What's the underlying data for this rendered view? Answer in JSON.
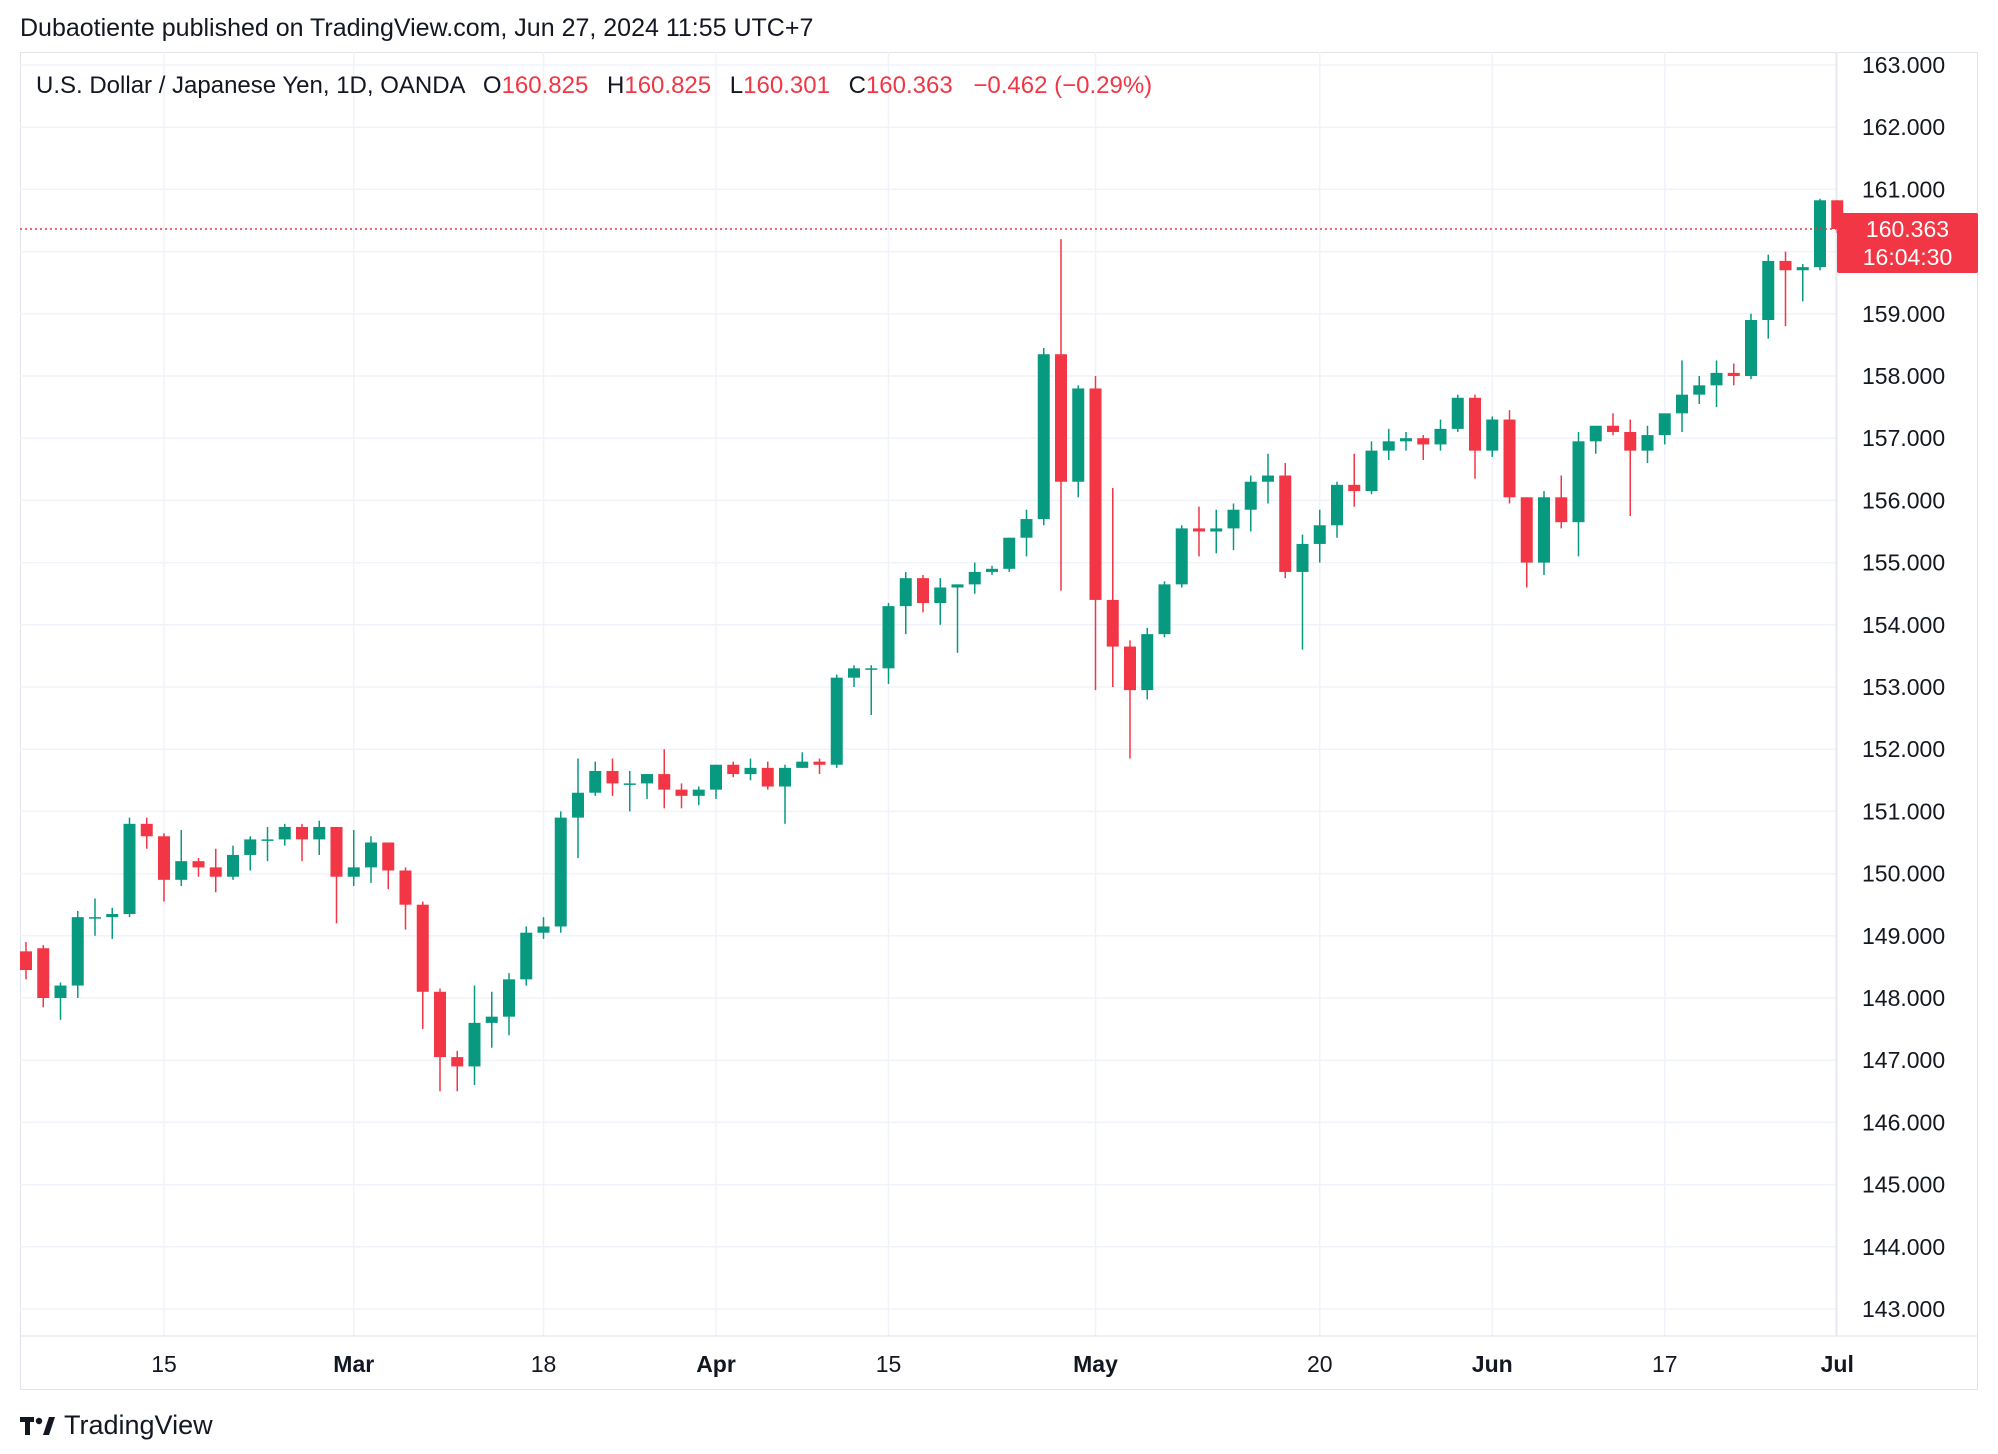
{
  "header": {
    "publisher_line": "Dubaotiente published on TradingView.com, Jun 27, 2024 11:55 UTC+7"
  },
  "legend": {
    "symbol": "U.S. Dollar / Japanese Yen, 1D, OANDA",
    "open_label": "O",
    "open_value": "160.825",
    "high_label": "H",
    "high_value": "160.825",
    "low_label": "L",
    "low_value": "160.301",
    "close_label": "C",
    "close_value": "160.363",
    "change": "−0.462 (−0.29%)"
  },
  "price_tag": {
    "price": "160.363",
    "countdown": "16:04:30"
  },
  "brand": {
    "name": "TradingView",
    "logo_icon": "tradingview-logo-icon"
  },
  "colors": {
    "up": "#089981",
    "down": "#f23645",
    "grid": "#f0f3fa",
    "last_price_line": "#f23645"
  },
  "chart_data": {
    "type": "candlestick",
    "title": "",
    "xlabel": "",
    "ylabel": "",
    "ylim": [
      142.6,
      163.4
    ],
    "y_ticks": [
      "163.000",
      "162.000",
      "161.000",
      "160.000",
      "159.000",
      "158.000",
      "157.000",
      "156.000",
      "155.000",
      "154.000",
      "153.000",
      "152.000",
      "151.000",
      "150.000",
      "149.000",
      "148.000",
      "147.000",
      "146.000",
      "145.000",
      "144.000",
      "143.000"
    ],
    "x_ticks": [
      {
        "label": "15",
        "index": 8,
        "bold": false
      },
      {
        "label": "Mar",
        "index": 19,
        "bold": true
      },
      {
        "label": "18",
        "index": 30,
        "bold": false
      },
      {
        "label": "Apr",
        "index": 40,
        "bold": true
      },
      {
        "label": "15",
        "index": 50,
        "bold": false
      },
      {
        "label": "May",
        "index": 62,
        "bold": true
      },
      {
        "label": "20",
        "index": 75,
        "bold": false
      },
      {
        "label": "Jun",
        "index": 85,
        "bold": true
      },
      {
        "label": "17",
        "index": 95,
        "bold": false
      },
      {
        "label": "Jul",
        "index": 105,
        "bold": true
      }
    ],
    "last_price": 160.363,
    "grid": true,
    "candles": [
      [
        148.75,
        148.9,
        148.3,
        148.45
      ],
      [
        148.8,
        148.85,
        147.85,
        148.0
      ],
      [
        148.0,
        148.25,
        147.65,
        148.2
      ],
      [
        148.2,
        149.4,
        148.0,
        149.3
      ],
      [
        149.3,
        149.6,
        149.0,
        149.3
      ],
      [
        149.3,
        149.45,
        148.95,
        149.35
      ],
      [
        149.35,
        150.9,
        149.3,
        150.8
      ],
      [
        150.8,
        150.9,
        150.4,
        150.6
      ],
      [
        150.6,
        150.65,
        149.55,
        149.9
      ],
      [
        149.9,
        150.7,
        149.8,
        150.2
      ],
      [
        150.2,
        150.25,
        149.95,
        150.1
      ],
      [
        150.1,
        150.4,
        149.7,
        149.95
      ],
      [
        149.95,
        150.45,
        149.9,
        150.3
      ],
      [
        150.3,
        150.6,
        150.05,
        150.55
      ],
      [
        150.55,
        150.75,
        150.2,
        150.55
      ],
      [
        150.55,
        150.8,
        150.45,
        150.75
      ],
      [
        150.75,
        150.8,
        150.2,
        150.55
      ],
      [
        150.55,
        150.85,
        150.3,
        150.75
      ],
      [
        150.75,
        150.75,
        149.2,
        149.95
      ],
      [
        149.95,
        150.7,
        149.8,
        150.1
      ],
      [
        150.1,
        150.6,
        149.85,
        150.5
      ],
      [
        150.5,
        150.5,
        149.75,
        150.05
      ],
      [
        150.05,
        150.1,
        149.1,
        149.5
      ],
      [
        149.5,
        149.55,
        147.5,
        148.1
      ],
      [
        148.1,
        148.15,
        146.5,
        147.05
      ],
      [
        147.05,
        147.15,
        146.5,
        146.9
      ],
      [
        146.9,
        148.2,
        146.6,
        147.6
      ],
      [
        147.6,
        148.1,
        147.2,
        147.7
      ],
      [
        147.7,
        148.4,
        147.4,
        148.3
      ],
      [
        148.3,
        149.15,
        148.2,
        149.05
      ],
      [
        149.05,
        149.3,
        148.95,
        149.15
      ],
      [
        149.15,
        151.0,
        149.05,
        150.9
      ],
      [
        150.9,
        151.85,
        150.25,
        151.3
      ],
      [
        151.3,
        151.8,
        151.25,
        151.65
      ],
      [
        151.65,
        151.85,
        151.25,
        151.45
      ],
      [
        151.45,
        151.65,
        151.0,
        151.45
      ],
      [
        151.45,
        151.6,
        151.2,
        151.6
      ],
      [
        151.6,
        152.0,
        151.05,
        151.35
      ],
      [
        151.35,
        151.45,
        151.05,
        151.25
      ],
      [
        151.25,
        151.4,
        151.1,
        151.35
      ],
      [
        151.35,
        151.75,
        151.2,
        151.75
      ],
      [
        151.75,
        151.8,
        151.55,
        151.6
      ],
      [
        151.6,
        151.85,
        151.5,
        151.7
      ],
      [
        151.7,
        151.8,
        151.35,
        151.4
      ],
      [
        151.4,
        151.75,
        150.8,
        151.7
      ],
      [
        151.7,
        151.95,
        151.7,
        151.8
      ],
      [
        151.8,
        151.85,
        151.6,
        151.75
      ],
      [
        151.75,
        153.2,
        151.7,
        153.15
      ],
      [
        153.15,
        153.35,
        153.0,
        153.3
      ],
      [
        153.3,
        153.35,
        152.55,
        153.3
      ],
      [
        153.3,
        154.35,
        153.05,
        154.3
      ],
      [
        154.3,
        154.85,
        153.85,
        154.75
      ],
      [
        154.75,
        154.8,
        154.2,
        154.35
      ],
      [
        154.35,
        154.75,
        154.0,
        154.6
      ],
      [
        154.6,
        154.65,
        153.55,
        154.65
      ],
      [
        154.65,
        155.0,
        154.5,
        154.85
      ],
      [
        154.85,
        154.95,
        154.8,
        154.9
      ],
      [
        154.9,
        155.4,
        154.85,
        155.4
      ],
      [
        155.4,
        155.85,
        155.1,
        155.7
      ],
      [
        155.7,
        158.45,
        155.6,
        158.35
      ],
      [
        158.35,
        160.2,
        154.55,
        156.3
      ],
      [
        156.3,
        157.85,
        156.05,
        157.8
      ],
      [
        157.8,
        158.0,
        152.95,
        154.4
      ],
      [
        154.4,
        156.2,
        153.0,
        153.65
      ],
      [
        153.65,
        153.75,
        151.85,
        152.95
      ],
      [
        152.95,
        153.95,
        152.8,
        153.85
      ],
      [
        153.85,
        154.7,
        153.8,
        154.65
      ],
      [
        154.65,
        155.6,
        154.6,
        155.55
      ],
      [
        155.55,
        155.9,
        155.1,
        155.5
      ],
      [
        155.5,
        155.85,
        155.15,
        155.55
      ],
      [
        155.55,
        155.95,
        155.2,
        155.85
      ],
      [
        155.85,
        156.4,
        155.5,
        156.3
      ],
      [
        156.3,
        156.75,
        155.95,
        156.4
      ],
      [
        156.4,
        156.6,
        154.75,
        154.85
      ],
      [
        154.85,
        155.45,
        153.6,
        155.3
      ],
      [
        155.3,
        155.85,
        155.0,
        155.6
      ],
      [
        155.6,
        156.3,
        155.4,
        156.25
      ],
      [
        156.25,
        156.75,
        155.9,
        156.15
      ],
      [
        156.15,
        156.95,
        156.1,
        156.8
      ],
      [
        156.8,
        157.15,
        156.65,
        156.95
      ],
      [
        156.95,
        157.1,
        156.8,
        157.0
      ],
      [
        157.0,
        157.05,
        156.65,
        156.9
      ],
      [
        156.9,
        157.3,
        156.8,
        157.15
      ],
      [
        157.15,
        157.7,
        157.1,
        157.65
      ],
      [
        157.65,
        157.7,
        156.35,
        156.8
      ],
      [
        156.8,
        157.35,
        156.7,
        157.3
      ],
      [
        157.3,
        157.45,
        155.95,
        156.05
      ],
      [
        156.05,
        156.05,
        154.6,
        155.0
      ],
      [
        155.0,
        156.15,
        154.8,
        156.05
      ],
      [
        156.05,
        156.4,
        155.55,
        155.65
      ],
      [
        155.65,
        157.1,
        155.1,
        156.95
      ],
      [
        156.95,
        157.15,
        156.75,
        157.2
      ],
      [
        157.2,
        157.4,
        157.05,
        157.1
      ],
      [
        157.1,
        157.3,
        155.75,
        156.8
      ],
      [
        156.8,
        157.2,
        156.6,
        157.05
      ],
      [
        157.05,
        157.35,
        156.9,
        157.4
      ],
      [
        157.4,
        158.25,
        157.1,
        157.7
      ],
      [
        157.7,
        158.0,
        157.55,
        157.85
      ],
      [
        157.85,
        158.25,
        157.5,
        158.05
      ],
      [
        158.05,
        158.2,
        157.85,
        158.0
      ],
      [
        158.0,
        159.0,
        157.95,
        158.9
      ],
      [
        158.9,
        159.95,
        158.6,
        159.85
      ],
      [
        159.85,
        160.0,
        158.8,
        159.7
      ],
      [
        159.7,
        159.8,
        159.2,
        159.75
      ],
      [
        159.75,
        160.85,
        159.7,
        160.825
      ],
      [
        160.825,
        160.825,
        160.301,
        160.363
      ]
    ]
  }
}
